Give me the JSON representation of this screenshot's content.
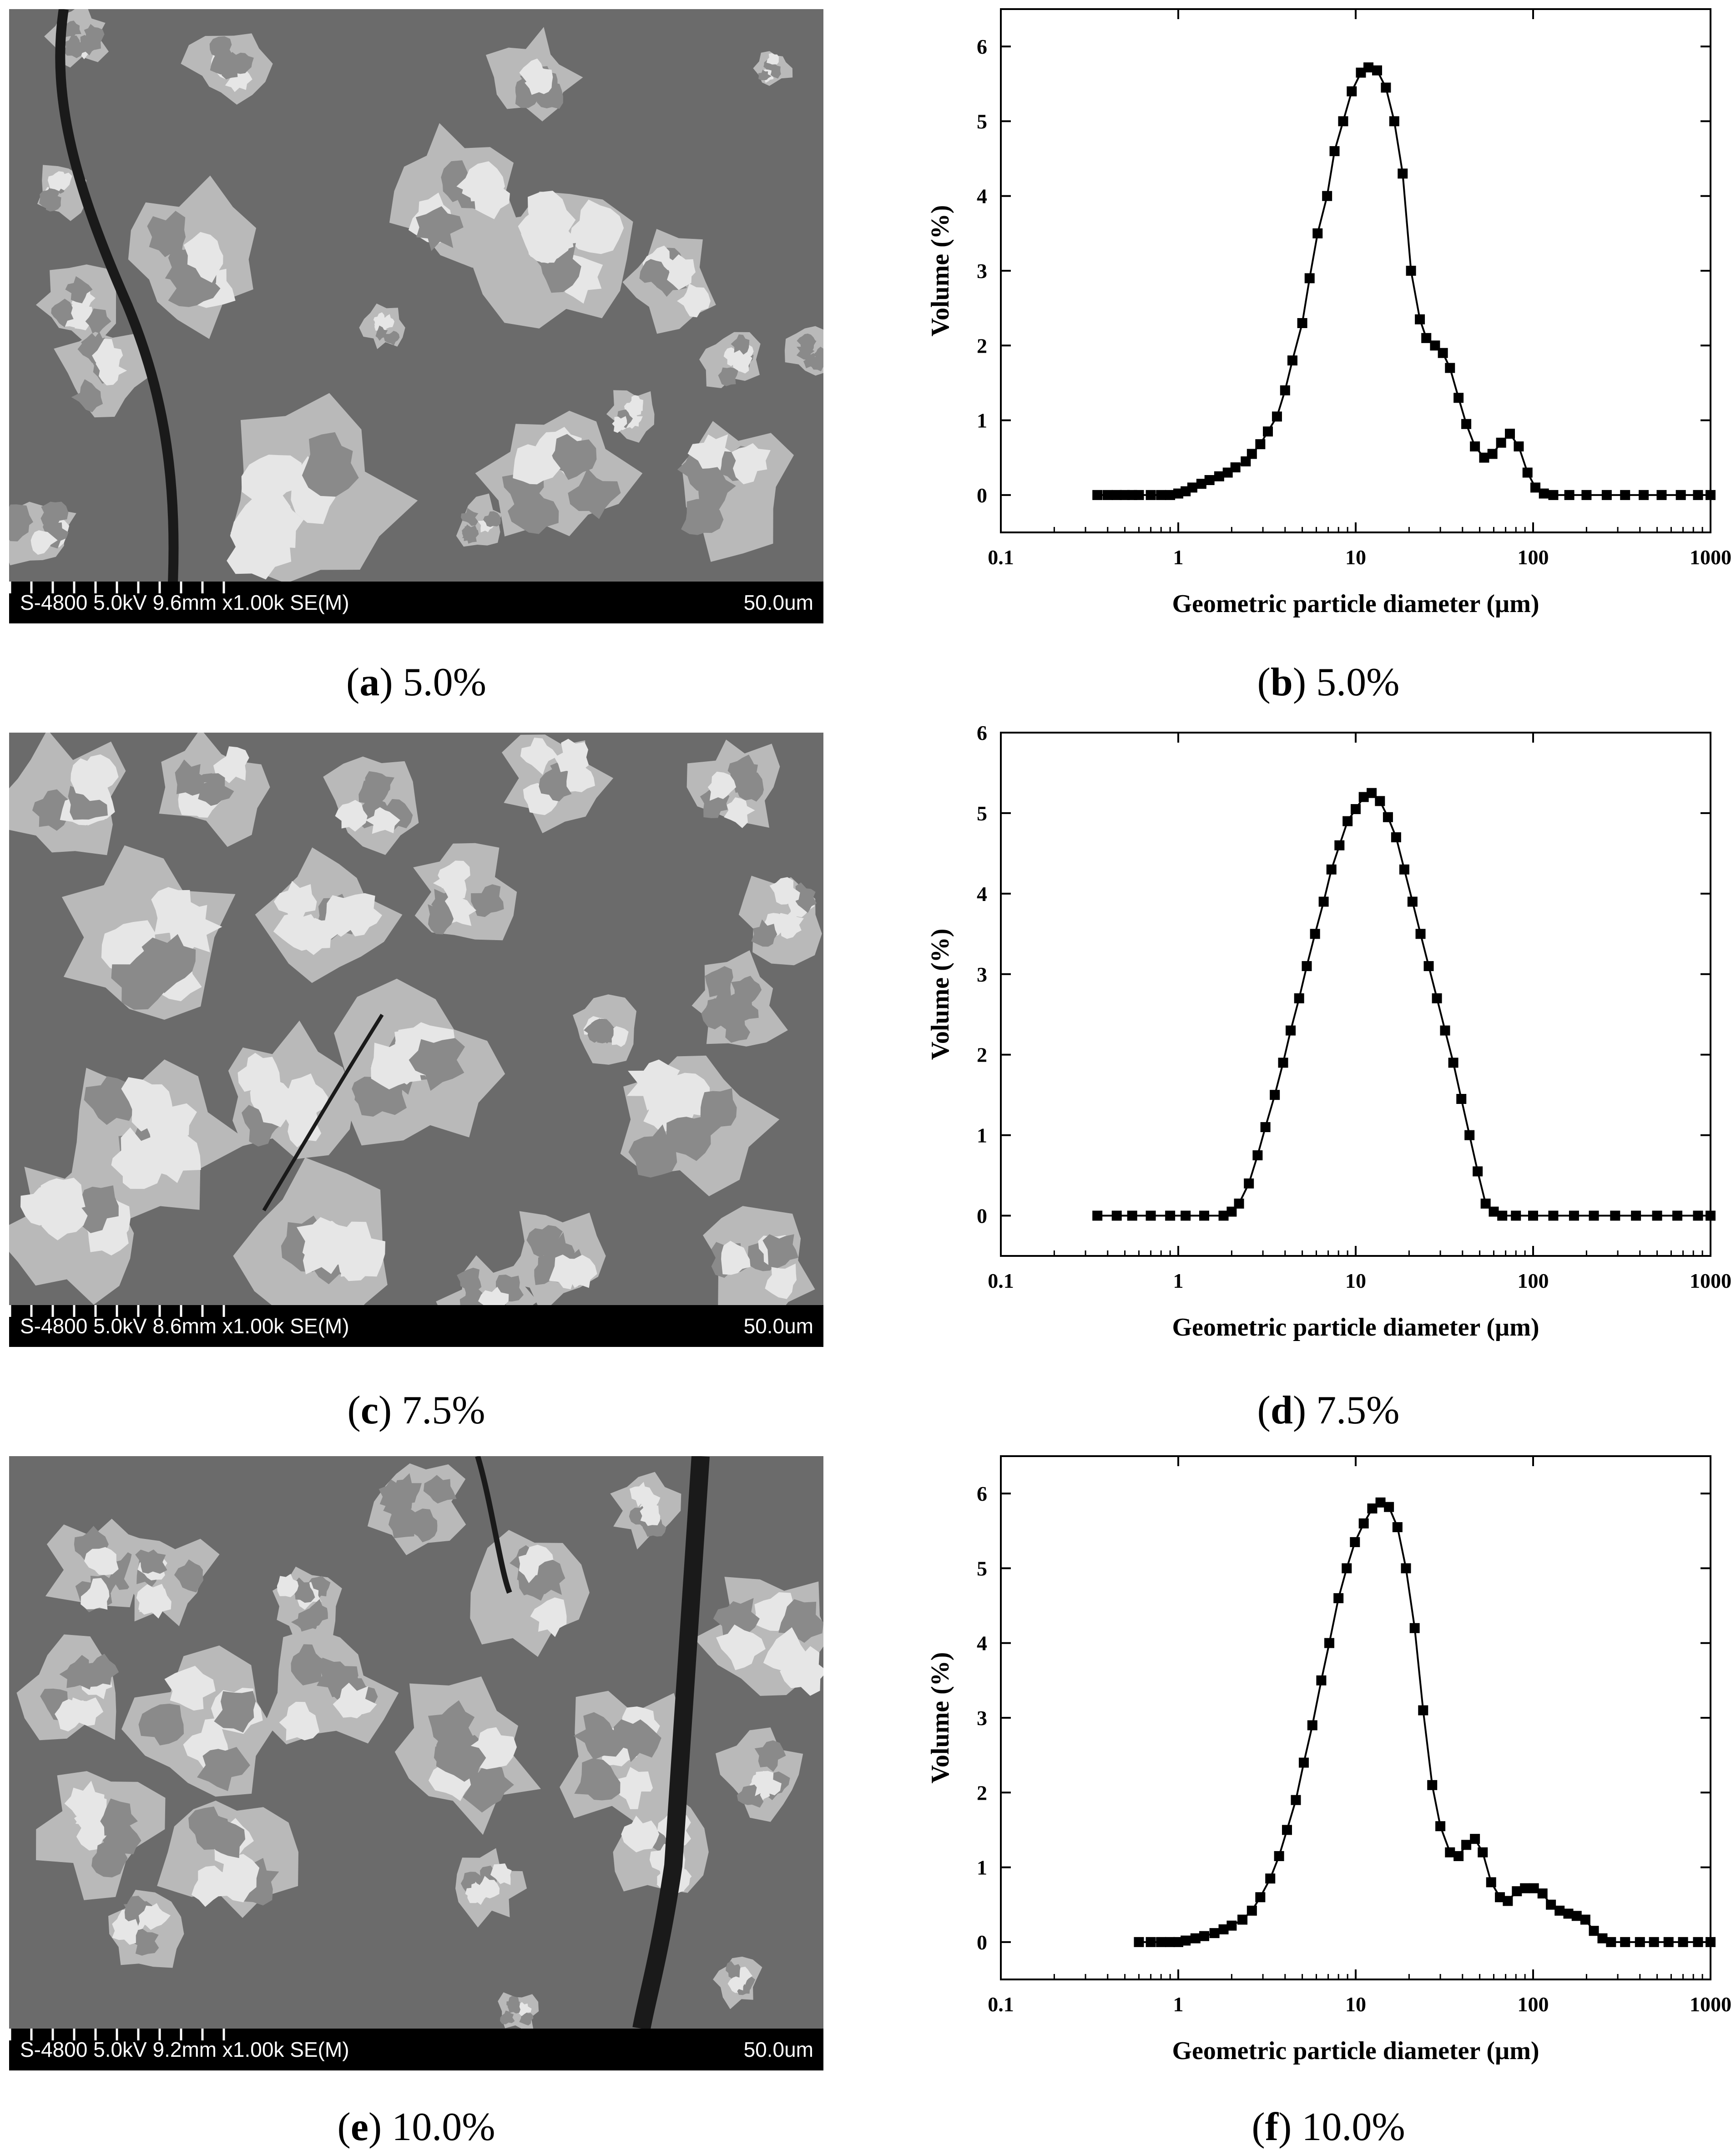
{
  "panels": [
    {
      "id": "a",
      "caption_letter": "a",
      "caption_value": "5.0%",
      "sem_info": "S-4800 5.0kV 9.6mm x1.00k SE(M)",
      "scale_text": "50.0um"
    },
    {
      "id": "b",
      "caption_letter": "b",
      "caption_value": "5.0%"
    },
    {
      "id": "c",
      "caption_letter": "c",
      "caption_value": "7.5%",
      "sem_info": "S-4800 5.0kV 8.6mm x1.00k SE(M)",
      "scale_text": "50.0um"
    },
    {
      "id": "d",
      "caption_letter": "d",
      "caption_value": "7.5%"
    },
    {
      "id": "e",
      "caption_letter": "e",
      "caption_value": "10.0%",
      "sem_info": "S-4800 5.0kV 9.2mm x1.00k SE(M)",
      "scale_text": "50.0um"
    },
    {
      "id": "f",
      "caption_letter": "f",
      "caption_value": "10.0%"
    }
  ],
  "chart_data": [
    {
      "type": "line",
      "marker": "square",
      "xscale": "log",
      "xlabel": "Geometric particle diameter (µm)",
      "ylabel": "Volume (%)",
      "xlim": [
        0.1,
        1000
      ],
      "ylim": [
        -0.5,
        6.5
      ],
      "xticks": [
        "0.1",
        "1",
        "10",
        "100",
        "1000"
      ],
      "yticks": [
        "0",
        "1",
        "2",
        "3",
        "4",
        "5",
        "6"
      ],
      "series": [
        {
          "points": [
            [
              0.35,
              0
            ],
            [
              0.4,
              0
            ],
            [
              0.45,
              0
            ],
            [
              0.5,
              0
            ],
            [
              0.55,
              0
            ],
            [
              0.6,
              0
            ],
            [
              0.7,
              0
            ],
            [
              0.8,
              0
            ],
            [
              0.9,
              0
            ],
            [
              1.0,
              0.02
            ],
            [
              1.1,
              0.05
            ],
            [
              1.2,
              0.1
            ],
            [
              1.35,
              0.15
            ],
            [
              1.5,
              0.2
            ],
            [
              1.7,
              0.25
            ],
            [
              1.9,
              0.3
            ],
            [
              2.1,
              0.37
            ],
            [
              2.4,
              0.45
            ],
            [
              2.6,
              0.55
            ],
            [
              2.9,
              0.68
            ],
            [
              3.2,
              0.85
            ],
            [
              3.6,
              1.05
            ],
            [
              4.0,
              1.4
            ],
            [
              4.4,
              1.8
            ],
            [
              5.0,
              2.3
            ],
            [
              5.5,
              2.9
            ],
            [
              6.1,
              3.5
            ],
            [
              6.9,
              4.0
            ],
            [
              7.6,
              4.6
            ],
            [
              8.5,
              5.0
            ],
            [
              9.5,
              5.4
            ],
            [
              10.7,
              5.65
            ],
            [
              11.8,
              5.72
            ],
            [
              13.2,
              5.68
            ],
            [
              14.8,
              5.45
            ],
            [
              16.5,
              5.0
            ],
            [
              18.4,
              4.3
            ],
            [
              20.5,
              3.0
            ],
            [
              23,
              2.35
            ],
            [
              25,
              2.1
            ],
            [
              28,
              2.0
            ],
            [
              31,
              1.9
            ],
            [
              34,
              1.7
            ],
            [
              38,
              1.3
            ],
            [
              42,
              0.95
            ],
            [
              47,
              0.65
            ],
            [
              53,
              0.5
            ],
            [
              59,
              0.55
            ],
            [
              66,
              0.7
            ],
            [
              74,
              0.82
            ],
            [
              83,
              0.65
            ],
            [
              93,
              0.3
            ],
            [
              103,
              0.1
            ],
            [
              115,
              0.02
            ],
            [
              130,
              0
            ],
            [
              160,
              0
            ],
            [
              200,
              0
            ],
            [
              260,
              0
            ],
            [
              330,
              0
            ],
            [
              420,
              0
            ],
            [
              530,
              0
            ],
            [
              680,
              0
            ],
            [
              850,
              0
            ],
            [
              1000,
              0
            ]
          ]
        }
      ]
    },
    {
      "type": "line",
      "marker": "square",
      "xscale": "log",
      "xlabel": "Geometric particle diameter (µm)",
      "ylabel": "Volume (%)",
      "xlim": [
        0.1,
        1000
      ],
      "ylim": [
        -0.5,
        6
      ],
      "xticks": [
        "0.1",
        "1",
        "10",
        "100",
        "1000"
      ],
      "yticks": [
        "0",
        "1",
        "2",
        "3",
        "4",
        "5",
        "6"
      ],
      "series": [
        {
          "points": [
            [
              0.35,
              0
            ],
            [
              0.45,
              0
            ],
            [
              0.55,
              0
            ],
            [
              0.7,
              0
            ],
            [
              0.9,
              0
            ],
            [
              1.1,
              0
            ],
            [
              1.4,
              0
            ],
            [
              1.8,
              0
            ],
            [
              2.0,
              0.05
            ],
            [
              2.2,
              0.15
            ],
            [
              2.5,
              0.4
            ],
            [
              2.8,
              0.75
            ],
            [
              3.1,
              1.1
            ],
            [
              3.5,
              1.5
            ],
            [
              3.9,
              1.9
            ],
            [
              4.3,
              2.3
            ],
            [
              4.8,
              2.7
            ],
            [
              5.3,
              3.1
            ],
            [
              5.9,
              3.5
            ],
            [
              6.6,
              3.9
            ],
            [
              7.3,
              4.3
            ],
            [
              8.1,
              4.6
            ],
            [
              9.0,
              4.9
            ],
            [
              10.0,
              5.05
            ],
            [
              11.1,
              5.2
            ],
            [
              12.3,
              5.25
            ],
            [
              13.7,
              5.15
            ],
            [
              15.2,
              4.95
            ],
            [
              16.9,
              4.7
            ],
            [
              18.8,
              4.3
            ],
            [
              20.9,
              3.9
            ],
            [
              23.2,
              3.5
            ],
            [
              25.8,
              3.1
            ],
            [
              28.7,
              2.7
            ],
            [
              31.9,
              2.3
            ],
            [
              35.5,
              1.9
            ],
            [
              39.4,
              1.45
            ],
            [
              43.8,
              1.0
            ],
            [
              48.7,
              0.55
            ],
            [
              54,
              0.15
            ],
            [
              60,
              0.05
            ],
            [
              67,
              0
            ],
            [
              80,
              0
            ],
            [
              100,
              0
            ],
            [
              130,
              0
            ],
            [
              170,
              0
            ],
            [
              220,
              0
            ],
            [
              290,
              0
            ],
            [
              380,
              0
            ],
            [
              500,
              0
            ],
            [
              650,
              0
            ],
            [
              850,
              0
            ],
            [
              1000,
              0
            ]
          ]
        }
      ]
    },
    {
      "type": "line",
      "marker": "square",
      "xscale": "log",
      "xlabel": "Geometric particle diameter (µm)",
      "ylabel": "Volume (%)",
      "xlim": [
        0.1,
        1000
      ],
      "ylim": [
        -0.5,
        6.5
      ],
      "xticks": [
        "0.1",
        "1",
        "10",
        "100",
        "1000"
      ],
      "yticks": [
        "0",
        "1",
        "2",
        "3",
        "4",
        "5",
        "6"
      ],
      "series": [
        {
          "points": [
            [
              0.6,
              0
            ],
            [
              0.7,
              0
            ],
            [
              0.8,
              0
            ],
            [
              0.9,
              0
            ],
            [
              1.0,
              0
            ],
            [
              1.1,
              0.02
            ],
            [
              1.25,
              0.05
            ],
            [
              1.4,
              0.08
            ],
            [
              1.6,
              0.12
            ],
            [
              1.8,
              0.17
            ],
            [
              2.0,
              0.22
            ],
            [
              2.3,
              0.3
            ],
            [
              2.6,
              0.42
            ],
            [
              2.9,
              0.6
            ],
            [
              3.3,
              0.85
            ],
            [
              3.7,
              1.15
            ],
            [
              4.1,
              1.5
            ],
            [
              4.6,
              1.9
            ],
            [
              5.1,
              2.4
            ],
            [
              5.7,
              2.9
            ],
            [
              6.4,
              3.5
            ],
            [
              7.1,
              4.0
            ],
            [
              8.0,
              4.6
            ],
            [
              8.9,
              5.0
            ],
            [
              9.9,
              5.35
            ],
            [
              11.1,
              5.6
            ],
            [
              12.4,
              5.8
            ],
            [
              13.8,
              5.88
            ],
            [
              15.4,
              5.82
            ],
            [
              17.2,
              5.55
            ],
            [
              19.2,
              5.0
            ],
            [
              21.5,
              4.2
            ],
            [
              24,
              3.1
            ],
            [
              27,
              2.1
            ],
            [
              30,
              1.55
            ],
            [
              34,
              1.2
            ],
            [
              38,
              1.15
            ],
            [
              42,
              1.3
            ],
            [
              47,
              1.38
            ],
            [
              52,
              1.2
            ],
            [
              58,
              0.8
            ],
            [
              65,
              0.6
            ],
            [
              72,
              0.55
            ],
            [
              81,
              0.68
            ],
            [
              90,
              0.72
            ],
            [
              101,
              0.72
            ],
            [
              113,
              0.65
            ],
            [
              126,
              0.5
            ],
            [
              141,
              0.42
            ],
            [
              158,
              0.38
            ],
            [
              176,
              0.35
            ],
            [
              197,
              0.3
            ],
            [
              220,
              0.15
            ],
            [
              246,
              0.05
            ],
            [
              275,
              0
            ],
            [
              330,
              0
            ],
            [
              400,
              0
            ],
            [
              480,
              0
            ],
            [
              580,
              0
            ],
            [
              700,
              0
            ],
            [
              850,
              0
            ],
            [
              1000,
              0
            ]
          ]
        }
      ]
    }
  ]
}
